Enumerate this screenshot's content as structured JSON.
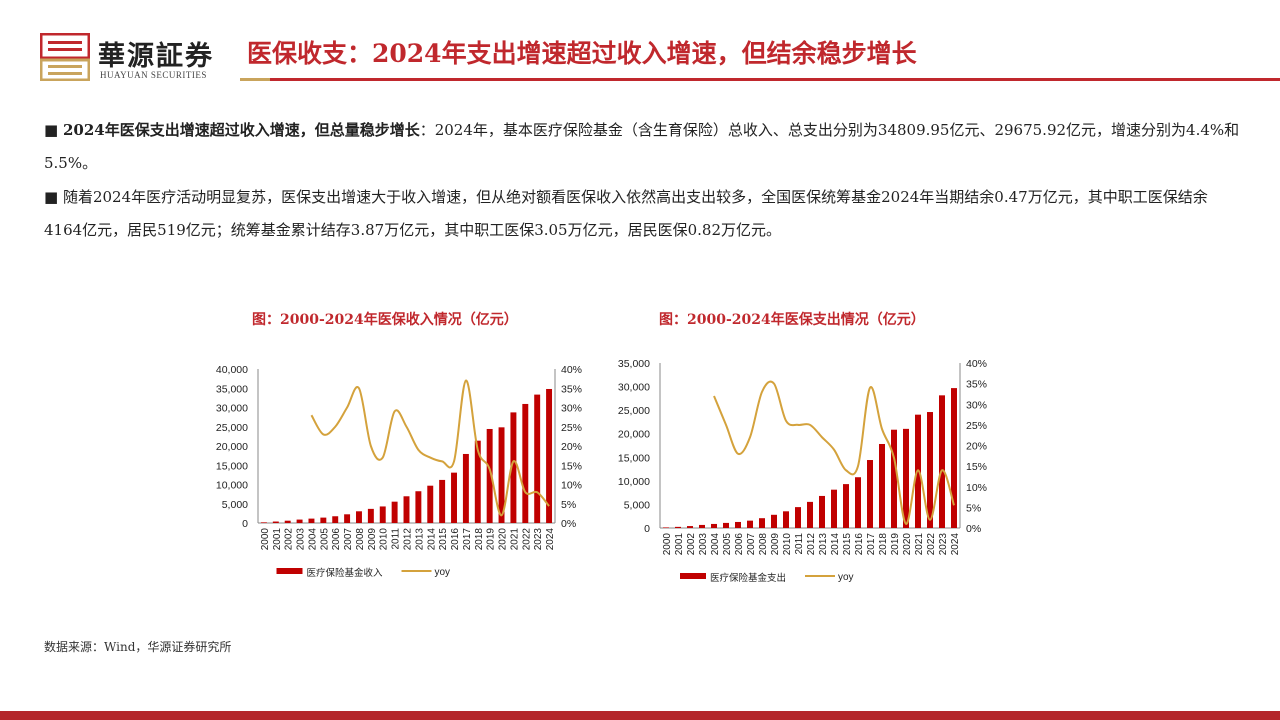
{
  "header": {
    "brand_cn": "華源証券",
    "brand_en": "HUAYUAN SECURITIES",
    "title": "医保收支：2024年支出增速超过收入增速，但结余稳步增长"
  },
  "bullets": [
    {
      "bold": "2024年医保支出增速超过收入增速，但总量稳步增长",
      "text": "：2024年，基本医疗保险基金（含生育保险）总收入、总支出分别为34809.95亿元、29675.92亿元，增速分别为4.4%和5.5%。"
    },
    {
      "bold": "",
      "text": "随着2024年医疗活动明显复苏，医保支出增速大于收入增速，但从绝对额看医保收入依然高出支出较多，全国医保统筹基金2024年当期结余0.47万亿元，其中职工医保结余4164亿元，居民519亿元；统筹基金累计结存3.87万亿元，其中职工医保3.05万亿元，居民医保0.82万亿元。"
    }
  ],
  "source": "数据来源：Wind，华源证券研究所",
  "colors": {
    "brand_red": "#c0282d",
    "bar": "#c00000",
    "line": "#d4a23c"
  },
  "chart_data": [
    {
      "type": "bar+line",
      "title": "图：2000-2024年医保收入情况（亿元）",
      "categories": [
        "2000",
        "2001",
        "2002",
        "2003",
        "2004",
        "2005",
        "2006",
        "2007",
        "2008",
        "2009",
        "2010",
        "2011",
        "2012",
        "2013",
        "2014",
        "2015",
        "2016",
        "2017",
        "2018",
        "2019",
        "2020",
        "2021",
        "2022",
        "2023",
        "2024"
      ],
      "series": [
        {
          "name": "医疗保险基金收入",
          "kind": "bar",
          "axis": "left",
          "values": [
            170,
            380,
            600,
            890,
            1140,
            1400,
            1750,
            2260,
            3040,
            3670,
            4300,
            5540,
            6940,
            8250,
            9690,
            11190,
            13080,
            17930,
            21380,
            24420,
            24850,
            28730,
            30920,
            33350,
            34810
          ]
        },
        {
          "name": "yoy",
          "kind": "line",
          "axis": "right",
          "values": [
            null,
            null,
            null,
            null,
            28,
            23,
            25,
            30,
            35,
            20,
            17,
            29,
            25,
            19,
            17,
            16,
            16,
            37,
            19,
            14,
            2,
            16,
            8,
            8,
            4.4
          ]
        }
      ],
      "left_ticks": [
        "0",
        "5,000",
        "10,000",
        "15,000",
        "20,000",
        "25,000",
        "30,000",
        "35,000",
        "40,000"
      ],
      "right_ticks": [
        "0%",
        "5%",
        "10%",
        "15%",
        "20%",
        "25%",
        "30%",
        "35%",
        "40%"
      ],
      "ylim_left": [
        0,
        40000
      ],
      "ylim_right": [
        0,
        40
      ],
      "grid": false,
      "legend": "bottom"
    },
    {
      "type": "bar+line",
      "title": "图：2000-2024年医保支出情况（亿元）",
      "categories": [
        "2000",
        "2001",
        "2002",
        "2003",
        "2004",
        "2005",
        "2006",
        "2007",
        "2008",
        "2009",
        "2010",
        "2011",
        "2012",
        "2013",
        "2014",
        "2015",
        "2016",
        "2017",
        "2018",
        "2019",
        "2020",
        "2021",
        "2022",
        "2023",
        "2024"
      ],
      "series": [
        {
          "name": "医疗保险基金支出",
          "kind": "bar",
          "axis": "left",
          "values": [
            120,
            240,
            410,
            650,
            860,
            1080,
            1280,
            1560,
            2080,
            2800,
            3540,
            4430,
            5540,
            6800,
            8130,
            9310,
            10770,
            14420,
            17820,
            20850,
            21030,
            24040,
            24600,
            28140,
            29676
          ]
        },
        {
          "name": "yoy",
          "kind": "line",
          "axis": "right",
          "values": [
            null,
            null,
            null,
            null,
            32,
            25,
            18,
            22,
            33,
            35,
            26,
            25,
            25,
            22,
            19,
            14,
            15,
            34,
            24,
            17,
            1,
            14,
            2,
            14,
            5.5
          ]
        }
      ],
      "left_ticks": [
        "0",
        "5,000",
        "10,000",
        "15,000",
        "20,000",
        "25,000",
        "30,000",
        "35,000"
      ],
      "right_ticks": [
        "0%",
        "5%",
        "10%",
        "15%",
        "20%",
        "25%",
        "30%",
        "35%",
        "40%"
      ],
      "ylim_left": [
        0,
        35000
      ],
      "ylim_right": [
        0,
        40
      ],
      "grid": false,
      "legend": "bottom"
    }
  ]
}
